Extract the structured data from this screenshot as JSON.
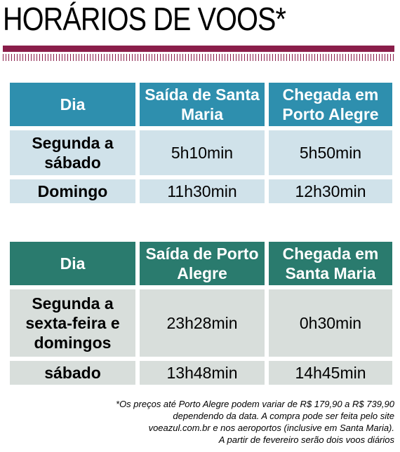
{
  "title": "HORÁRIOS DE VOOS*",
  "colors": {
    "accent": "#8a1e4a",
    "header_blue": "#2e8fae",
    "header_green": "#2a7b6e"
  },
  "table1": {
    "headers": [
      "Dia",
      "Saída de Santa Maria",
      "Chegada em Porto Alegre"
    ],
    "rows": [
      {
        "day": "Segunda a sábado",
        "departure": "5h10min",
        "arrival": "5h50min"
      },
      {
        "day": "Domingo",
        "departure": "11h30min",
        "arrival": "12h30min"
      }
    ]
  },
  "table2": {
    "headers": [
      "Dia",
      "Saída de Porto Alegre",
      "Chegada em Santa Maria"
    ],
    "rows": [
      {
        "day": "Segunda a sexta-feira e domingos",
        "departure": "23h28min",
        "arrival": "0h30min"
      },
      {
        "day": "sábado",
        "departure": "13h48min",
        "arrival": "14h45min"
      }
    ]
  },
  "footnote": [
    "*Os preços até Porto Alegre podem variar de R$ 179,90 a R$ 739,90",
    "dependendo da data. A compra pode ser feita pelo site",
    "voeazul.com.br e nos aeroportos (inclusive em Santa Maria).",
    "A partir de fevereiro serão dois voos diários"
  ]
}
